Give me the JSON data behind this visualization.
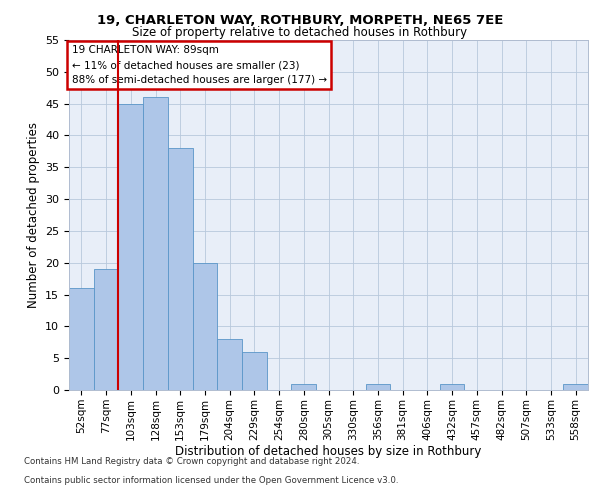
{
  "title1": "19, CHARLETON WAY, ROTHBURY, MORPETH, NE65 7EE",
  "title2": "Size of property relative to detached houses in Rothbury",
  "xlabel": "Distribution of detached houses by size in Rothbury",
  "ylabel": "Number of detached properties",
  "categories": [
    "52sqm",
    "77sqm",
    "103sqm",
    "128sqm",
    "153sqm",
    "179sqm",
    "204sqm",
    "229sqm",
    "254sqm",
    "280sqm",
    "305sqm",
    "330sqm",
    "356sqm",
    "381sqm",
    "406sqm",
    "432sqm",
    "457sqm",
    "482sqm",
    "507sqm",
    "533sqm",
    "558sqm"
  ],
  "values": [
    16,
    19,
    45,
    46,
    38,
    20,
    8,
    6,
    0,
    1,
    0,
    0,
    1,
    0,
    0,
    1,
    0,
    0,
    0,
    0,
    1
  ],
  "bar_color": "#aec6e8",
  "bar_edge_color": "#5a96c8",
  "annotation_text": "19 CHARLETON WAY: 89sqm\n← 11% of detached houses are smaller (23)\n88% of semi-detached houses are larger (177) →",
  "annotation_box_color": "#ffffff",
  "annotation_box_edge_color": "#cc0000",
  "redline_color": "#cc0000",
  "footer1": "Contains HM Land Registry data © Crown copyright and database right 2024.",
  "footer2": "Contains public sector information licensed under the Open Government Licence v3.0.",
  "background_color": "#e8eef8",
  "ylim": [
    0,
    55
  ],
  "yticks": [
    0,
    5,
    10,
    15,
    20,
    25,
    30,
    35,
    40,
    45,
    50,
    55
  ]
}
